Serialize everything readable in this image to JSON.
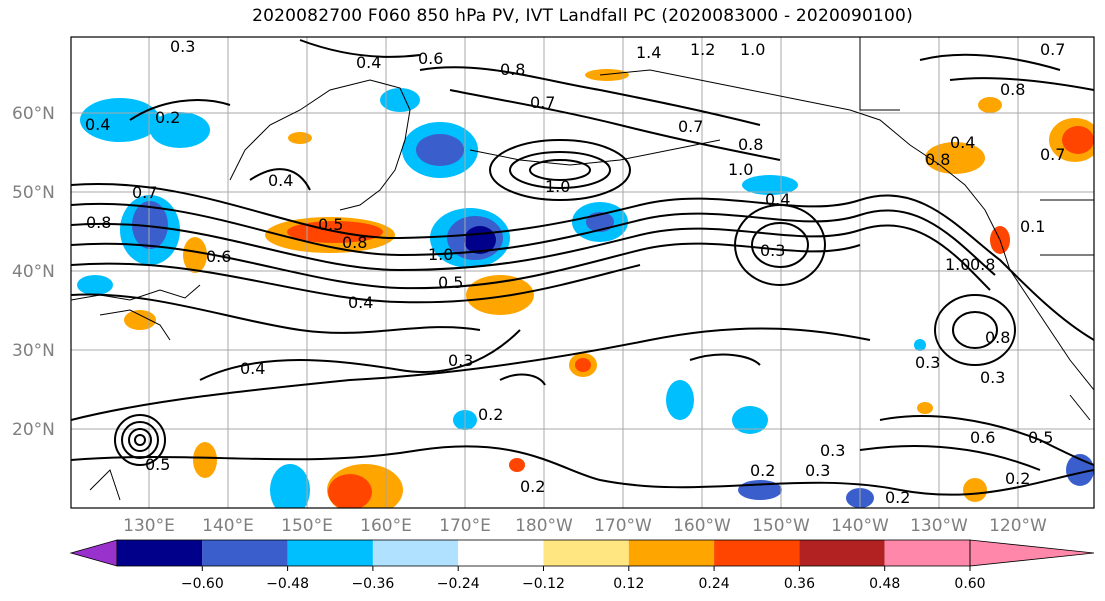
{
  "title": "2020082700 F060 850 hPa PV, IVT Landfall PC (2020083000 - 2020090100)",
  "lat_labels": [
    "60°N",
    "50°N",
    "40°N",
    "30°N",
    "20°N"
  ],
  "lon_labels": [
    "130°E",
    "140°E",
    "150°E",
    "160°E",
    "170°E",
    "180°W",
    "170°W",
    "160°W",
    "150°W",
    "140°W",
    "130°W",
    "120°W"
  ],
  "colorbar": {
    "ticks": [
      "−0.60",
      "−0.48",
      "−0.36",
      "−0.24",
      "−0.12",
      "0.12",
      "0.24",
      "0.36",
      "0.48",
      "0.60"
    ],
    "colors": [
      "#9932cc",
      "#00008b",
      "#3a5fcd",
      "#00bfff",
      "#b0e2ff",
      "#ffffff",
      "#ffe680",
      "#ffa500",
      "#ff4500",
      "#b22222",
      "#ff88aa"
    ]
  },
  "contour_labels": [
    "0.3",
    "0.4",
    "0.6",
    "0.8",
    "0.7",
    "1.4",
    "1.2",
    "1.0",
    "0.7",
    "0.8",
    "0.2",
    "0.4",
    "0.4",
    "0.7",
    "0.8",
    "1.0",
    "1.0",
    "0.7",
    "0.8",
    "0.5",
    "0.8",
    "1.0",
    "0.5",
    "0.4",
    "0.6",
    "0.3",
    "0.4",
    "0.3",
    "0.4",
    "0.2",
    "0.3",
    "0.2",
    "0.2",
    "0.3",
    "0.3",
    "0.2",
    "0.4",
    "0.8",
    "1.0",
    "0.8",
    "0.3",
    "0.6",
    "0.5",
    "0.2",
    "0.8",
    "0.7",
    "0.1",
    "0.5"
  ]
}
